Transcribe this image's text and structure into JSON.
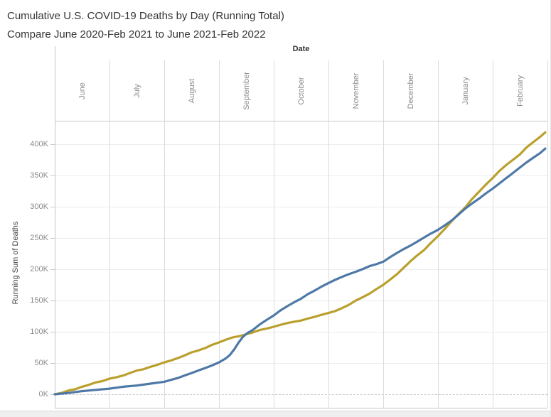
{
  "chart_data": {
    "type": "line",
    "title": "Cumulative U.S. COVID-19 Deaths by Day (Running Total)",
    "subtitle": "Compare June 2020-Feb 2021 to June 2021-Feb 2022",
    "x_axis": {
      "title": "Date",
      "categories": [
        "June",
        "July",
        "August",
        "September",
        "October",
        "November",
        "December",
        "January",
        "February"
      ],
      "note": "point x values are months elapsed since June 1 (0 = June 1, 9 = end of February)"
    },
    "y_axis": {
      "title": "Running Sum of Deaths",
      "ticks": [
        {
          "label": "0K",
          "value_k": 0
        },
        {
          "label": "50K",
          "value_k": 50
        },
        {
          "label": "100K",
          "value_k": 100
        },
        {
          "label": "150K",
          "value_k": 150
        },
        {
          "label": "200K",
          "value_k": 200
        },
        {
          "label": "250K",
          "value_k": 250
        },
        {
          "label": "300K",
          "value_k": 300
        },
        {
          "label": "350K",
          "value_k": 350
        },
        {
          "label": "400K",
          "value_k": 400
        }
      ],
      "visible_range_k": [
        0,
        437
      ],
      "zero_line_style": "dashed"
    },
    "grid": true,
    "legend_position": "none",
    "series": [
      {
        "name": "June 2020-Feb 2021",
        "color": "#b9a02d",
        "points_month_valueK": [
          [
            0,
            0
          ],
          [
            0.12,
            2
          ],
          [
            0.25,
            6
          ],
          [
            0.37,
            8
          ],
          [
            0.5,
            12
          ],
          [
            0.62,
            15
          ],
          [
            0.75,
            19
          ],
          [
            0.87,
            21
          ],
          [
            1,
            25
          ],
          [
            1.12,
            27
          ],
          [
            1.25,
            30
          ],
          [
            1.37,
            34
          ],
          [
            1.5,
            38
          ],
          [
            1.62,
            40
          ],
          [
            1.75,
            44
          ],
          [
            1.87,
            47
          ],
          [
            2,
            51
          ],
          [
            2.12,
            54
          ],
          [
            2.25,
            58
          ],
          [
            2.37,
            62
          ],
          [
            2.5,
            67
          ],
          [
            2.62,
            70
          ],
          [
            2.75,
            74
          ],
          [
            2.87,
            79
          ],
          [
            3,
            83
          ],
          [
            3.12,
            87
          ],
          [
            3.25,
            91
          ],
          [
            3.37,
            93
          ],
          [
            3.5,
            96
          ],
          [
            3.62,
            99
          ],
          [
            3.75,
            103
          ],
          [
            3.87,
            105
          ],
          [
            4,
            108
          ],
          [
            4.12,
            111
          ],
          [
            4.25,
            114
          ],
          [
            4.37,
            116
          ],
          [
            4.5,
            118
          ],
          [
            4.62,
            121
          ],
          [
            4.75,
            124
          ],
          [
            4.87,
            127
          ],
          [
            5,
            130
          ],
          [
            5.12,
            133
          ],
          [
            5.25,
            138
          ],
          [
            5.37,
            143
          ],
          [
            5.5,
            150
          ],
          [
            5.62,
            155
          ],
          [
            5.75,
            161
          ],
          [
            5.87,
            168
          ],
          [
            6,
            175
          ],
          [
            6.12,
            183
          ],
          [
            6.25,
            192
          ],
          [
            6.37,
            202
          ],
          [
            6.5,
            213
          ],
          [
            6.62,
            222
          ],
          [
            6.75,
            231
          ],
          [
            6.87,
            242
          ],
          [
            7,
            253
          ],
          [
            7.12,
            264
          ],
          [
            7.25,
            277
          ],
          [
            7.37,
            288
          ],
          [
            7.5,
            299
          ],
          [
            7.62,
            312
          ],
          [
            7.75,
            324
          ],
          [
            7.87,
            335
          ],
          [
            8,
            346
          ],
          [
            8.12,
            357
          ],
          [
            8.25,
            367
          ],
          [
            8.37,
            375
          ],
          [
            8.5,
            384
          ],
          [
            8.62,
            395
          ],
          [
            8.75,
            404
          ],
          [
            8.87,
            412
          ],
          [
            8.96,
            419
          ]
        ]
      },
      {
        "name": "June 2021-Feb 2022",
        "color": "#4e79a7",
        "points_month_valueK": [
          [
            0,
            0
          ],
          [
            0.25,
            2
          ],
          [
            0.5,
            5
          ],
          [
            0.75,
            7
          ],
          [
            1,
            9
          ],
          [
            1.25,
            12
          ],
          [
            1.5,
            14
          ],
          [
            1.75,
            17
          ],
          [
            2,
            20
          ],
          [
            2.12,
            23
          ],
          [
            2.25,
            26
          ],
          [
            2.37,
            30
          ],
          [
            2.5,
            34
          ],
          [
            2.62,
            38
          ],
          [
            2.75,
            42
          ],
          [
            2.87,
            46
          ],
          [
            3,
            51
          ],
          [
            3.12,
            57
          ],
          [
            3.2,
            63
          ],
          [
            3.28,
            72
          ],
          [
            3.36,
            83
          ],
          [
            3.44,
            92
          ],
          [
            3.52,
            98
          ],
          [
            3.62,
            103
          ],
          [
            3.75,
            112
          ],
          [
            3.87,
            119
          ],
          [
            4,
            126
          ],
          [
            4.12,
            134
          ],
          [
            4.25,
            141
          ],
          [
            4.37,
            147
          ],
          [
            4.5,
            153
          ],
          [
            4.62,
            160
          ],
          [
            4.75,
            166
          ],
          [
            4.87,
            172
          ],
          [
            5,
            178
          ],
          [
            5.12,
            183
          ],
          [
            5.25,
            188
          ],
          [
            5.37,
            192
          ],
          [
            5.5,
            196
          ],
          [
            5.62,
            200
          ],
          [
            5.75,
            205
          ],
          [
            5.87,
            208
          ],
          [
            6,
            212
          ],
          [
            6.12,
            219
          ],
          [
            6.25,
            226
          ],
          [
            6.37,
            232
          ],
          [
            6.5,
            238
          ],
          [
            6.62,
            244
          ],
          [
            6.75,
            251
          ],
          [
            6.87,
            257
          ],
          [
            7,
            263
          ],
          [
            7.12,
            270
          ],
          [
            7.25,
            278
          ],
          [
            7.37,
            287
          ],
          [
            7.5,
            297
          ],
          [
            7.62,
            305
          ],
          [
            7.75,
            313
          ],
          [
            7.87,
            321
          ],
          [
            8,
            329
          ],
          [
            8.12,
            337
          ],
          [
            8.25,
            346
          ],
          [
            8.37,
            354
          ],
          [
            8.5,
            363
          ],
          [
            8.62,
            371
          ],
          [
            8.75,
            379
          ],
          [
            8.87,
            386
          ],
          [
            8.96,
            393
          ]
        ]
      }
    ],
    "annotations": {
      "first_crossing": "curves cross mid-September near 100K",
      "second_crossing": "curves cross early January near 285K",
      "end_values_k": {
        "June 2020-Feb 2021": 419,
        "June 2021-Feb 2022": 393
      }
    }
  }
}
